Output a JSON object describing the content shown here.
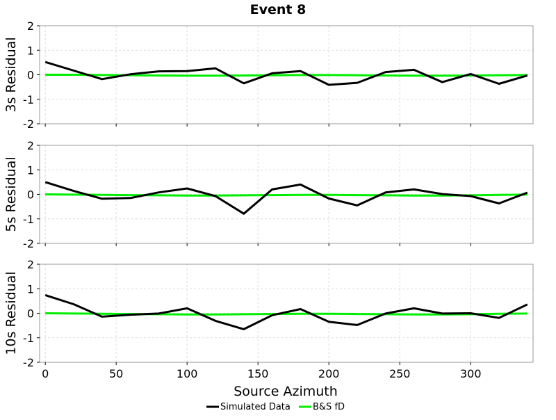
{
  "chart_data": {
    "type": "line",
    "title": "Event 8",
    "xlabel": "Source Azimuth",
    "xlim": [
      -4,
      344
    ],
    "x_ticks": [
      0,
      50,
      100,
      150,
      200,
      250,
      300
    ],
    "ylim": [
      -2,
      2
    ],
    "y_ticks": [
      2,
      1,
      0,
      -1,
      -2
    ],
    "grid": true,
    "legend_position": "bottom-center",
    "series_styles": [
      {
        "name": "Simulated Data",
        "color": "#000000"
      },
      {
        "name": "B&S fD",
        "color": "#00ee00"
      }
    ],
    "x": [
      0,
      20,
      40,
      60,
      80,
      100,
      120,
      140,
      160,
      180,
      200,
      220,
      240,
      260,
      280,
      300,
      320,
      340
    ],
    "panels": [
      {
        "ylabel": "3s Residual",
        "series": [
          {
            "name": "Simulated Data",
            "values": [
              0.52,
              0.17,
              -0.18,
              0.02,
              0.14,
              0.15,
              0.26,
              -0.35,
              0.06,
              0.15,
              -0.41,
              -0.33,
              0.11,
              0.2,
              -0.3,
              0.03,
              -0.37,
              -0.03
            ]
          },
          {
            "name": "B&S fD",
            "values": [
              0.0,
              0.0,
              -0.01,
              -0.02,
              -0.03,
              -0.04,
              -0.04,
              -0.03,
              -0.02,
              -0.01,
              -0.01,
              -0.02,
              -0.03,
              -0.04,
              -0.04,
              -0.03,
              -0.02,
              -0.01
            ]
          }
        ]
      },
      {
        "ylabel": "5s Residual",
        "series": [
          {
            "name": "Simulated Data",
            "values": [
              0.5,
              0.14,
              -0.18,
              -0.15,
              0.08,
              0.24,
              -0.07,
              -0.79,
              0.2,
              0.4,
              -0.17,
              -0.45,
              0.08,
              0.2,
              0.01,
              -0.07,
              -0.37,
              0.07
            ]
          },
          {
            "name": "B&S fD",
            "values": [
              0.0,
              -0.01,
              -0.02,
              -0.03,
              -0.04,
              -0.05,
              -0.05,
              -0.04,
              -0.03,
              -0.02,
              -0.02,
              -0.03,
              -0.04,
              -0.05,
              -0.05,
              -0.04,
              -0.02,
              -0.01
            ]
          }
        ]
      },
      {
        "ylabel": "10s Residual",
        "series": [
          {
            "name": "Simulated Data",
            "values": [
              0.74,
              0.37,
              -0.14,
              -0.06,
              -0.01,
              0.2,
              -0.31,
              -0.65,
              -0.08,
              0.17,
              -0.35,
              -0.48,
              -0.01,
              0.2,
              -0.01,
              0.0,
              -0.19,
              0.36
            ]
          },
          {
            "name": "B&S fD",
            "values": [
              0.0,
              -0.01,
              -0.02,
              -0.03,
              -0.04,
              -0.05,
              -0.05,
              -0.04,
              -0.03,
              -0.02,
              -0.02,
              -0.03,
              -0.04,
              -0.05,
              -0.05,
              -0.04,
              -0.02,
              -0.01
            ]
          }
        ]
      }
    ]
  }
}
